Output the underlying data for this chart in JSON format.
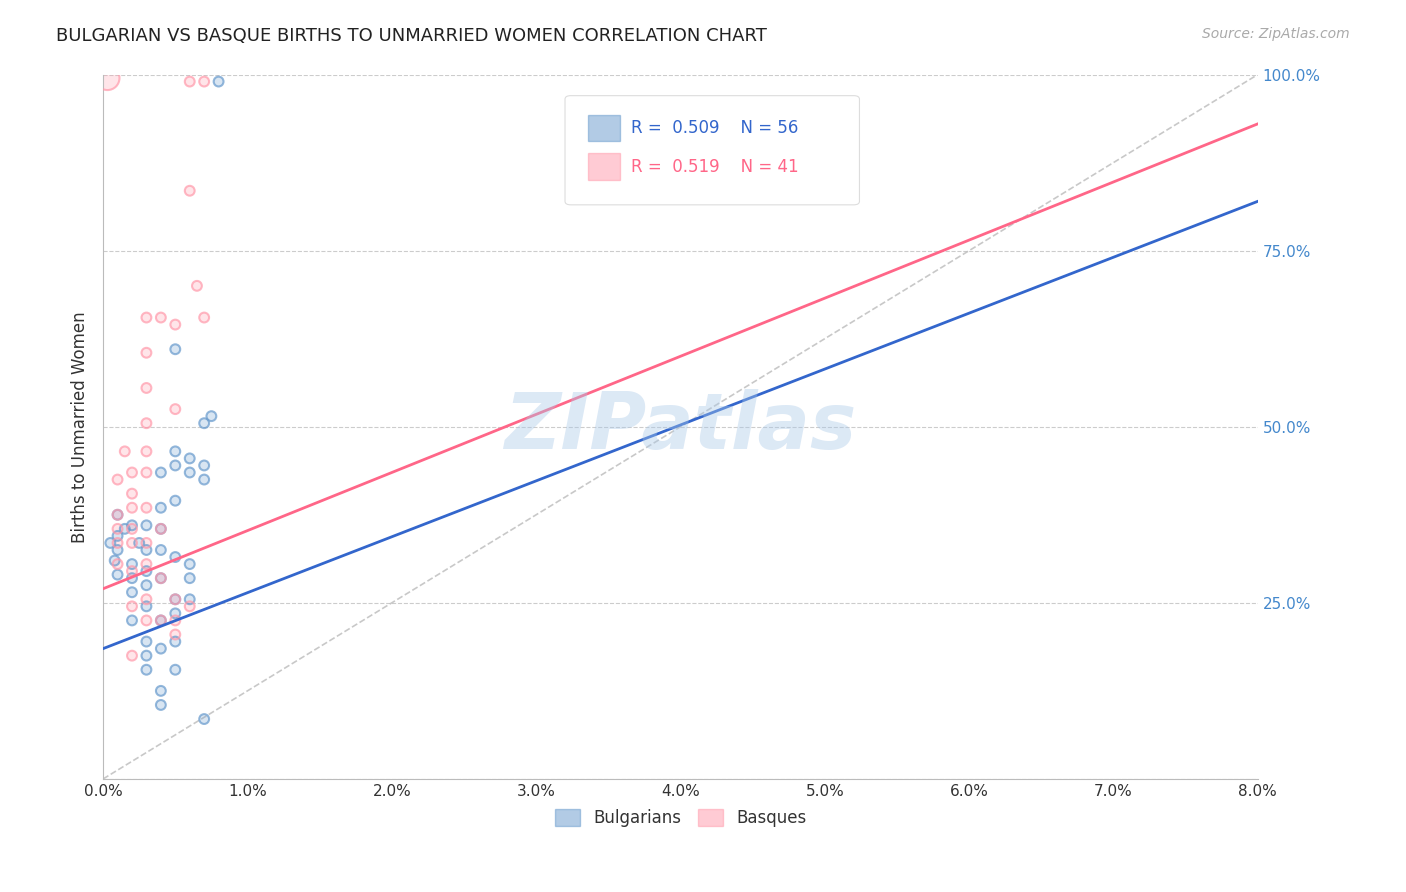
{
  "title": "BULGARIAN VS BASQUE BIRTHS TO UNMARRIED WOMEN CORRELATION CHART",
  "source": "Source: ZipAtlas.com",
  "ylabel": "Births to Unmarried Women",
  "xlim": [
    0.0,
    0.08
  ],
  "ylim": [
    0.0,
    1.0
  ],
  "xticks": [
    0.0,
    0.01,
    0.02,
    0.03,
    0.04,
    0.05,
    0.06,
    0.07,
    0.08
  ],
  "xticklabels": [
    "0.0%",
    "1.0%",
    "2.0%",
    "3.0%",
    "4.0%",
    "5.0%",
    "6.0%",
    "7.0%",
    "8.0%"
  ],
  "yticks_right": [
    0.0,
    0.25,
    0.5,
    0.75,
    1.0
  ],
  "yticklabels_right": [
    "",
    "25.0%",
    "50.0%",
    "75.0%",
    "100.0%"
  ],
  "grid_color": "#cccccc",
  "background_color": "#ffffff",
  "watermark": "ZIPatlas",
  "watermark_color": "#a8c8e8",
  "blue_color": "#6699cc",
  "pink_color": "#ff99aa",
  "blue_line_color": "#3366cc",
  "pink_line_color": "#ff6688",
  "dashed_line_color": "#bbbbbb",
  "blue_scatter": [
    [
      0.0005,
      0.335
    ],
    [
      0.0008,
      0.31
    ],
    [
      0.001,
      0.345
    ],
    [
      0.001,
      0.325
    ],
    [
      0.001,
      0.29
    ],
    [
      0.001,
      0.375
    ],
    [
      0.0015,
      0.355
    ],
    [
      0.002,
      0.36
    ],
    [
      0.002,
      0.305
    ],
    [
      0.002,
      0.285
    ],
    [
      0.002,
      0.265
    ],
    [
      0.002,
      0.225
    ],
    [
      0.0025,
      0.335
    ],
    [
      0.003,
      0.295
    ],
    [
      0.003,
      0.275
    ],
    [
      0.003,
      0.325
    ],
    [
      0.003,
      0.36
    ],
    [
      0.003,
      0.245
    ],
    [
      0.003,
      0.195
    ],
    [
      0.003,
      0.175
    ],
    [
      0.003,
      0.155
    ],
    [
      0.004,
      0.435
    ],
    [
      0.004,
      0.385
    ],
    [
      0.004,
      0.355
    ],
    [
      0.004,
      0.325
    ],
    [
      0.004,
      0.285
    ],
    [
      0.004,
      0.225
    ],
    [
      0.004,
      0.185
    ],
    [
      0.004,
      0.125
    ],
    [
      0.004,
      0.105
    ],
    [
      0.005,
      0.61
    ],
    [
      0.005,
      0.465
    ],
    [
      0.005,
      0.445
    ],
    [
      0.005,
      0.395
    ],
    [
      0.005,
      0.315
    ],
    [
      0.005,
      0.255
    ],
    [
      0.005,
      0.235
    ],
    [
      0.005,
      0.195
    ],
    [
      0.005,
      0.155
    ],
    [
      0.006,
      0.435
    ],
    [
      0.006,
      0.455
    ],
    [
      0.006,
      0.305
    ],
    [
      0.006,
      0.285
    ],
    [
      0.006,
      0.255
    ],
    [
      0.007,
      0.505
    ],
    [
      0.007,
      0.445
    ],
    [
      0.007,
      0.425
    ],
    [
      0.007,
      0.085
    ],
    [
      0.0075,
      0.515
    ],
    [
      0.008,
      0.99
    ]
  ],
  "blue_sizes": [
    50,
    50,
    50,
    50,
    50,
    50,
    50,
    50,
    50,
    50,
    50,
    50,
    50,
    50,
    50,
    50,
    50,
    50,
    50,
    50,
    50,
    50,
    50,
    50,
    50,
    50,
    50,
    50,
    50,
    50,
    50,
    50,
    50,
    50,
    50,
    50,
    50,
    50,
    50,
    50,
    50,
    50,
    50,
    50,
    50,
    50,
    50,
    50,
    50,
    50
  ],
  "pink_scatter": [
    [
      0.0003,
      0.995
    ],
    [
      0.001,
      0.425
    ],
    [
      0.001,
      0.355
    ],
    [
      0.001,
      0.375
    ],
    [
      0.001,
      0.335
    ],
    [
      0.001,
      0.305
    ],
    [
      0.0015,
      0.465
    ],
    [
      0.002,
      0.435
    ],
    [
      0.002,
      0.405
    ],
    [
      0.002,
      0.385
    ],
    [
      0.002,
      0.355
    ],
    [
      0.002,
      0.335
    ],
    [
      0.002,
      0.295
    ],
    [
      0.002,
      0.245
    ],
    [
      0.002,
      0.175
    ],
    [
      0.003,
      0.655
    ],
    [
      0.003,
      0.605
    ],
    [
      0.003,
      0.555
    ],
    [
      0.003,
      0.505
    ],
    [
      0.003,
      0.465
    ],
    [
      0.003,
      0.435
    ],
    [
      0.003,
      0.385
    ],
    [
      0.003,
      0.335
    ],
    [
      0.003,
      0.305
    ],
    [
      0.003,
      0.255
    ],
    [
      0.003,
      0.225
    ],
    [
      0.004,
      0.655
    ],
    [
      0.004,
      0.355
    ],
    [
      0.004,
      0.285
    ],
    [
      0.004,
      0.225
    ],
    [
      0.005,
      0.645
    ],
    [
      0.005,
      0.525
    ],
    [
      0.005,
      0.255
    ],
    [
      0.005,
      0.225
    ],
    [
      0.005,
      0.205
    ],
    [
      0.006,
      0.835
    ],
    [
      0.006,
      0.245
    ],
    [
      0.006,
      0.99
    ],
    [
      0.007,
      0.655
    ],
    [
      0.0065,
      0.7
    ],
    [
      0.007,
      0.99
    ]
  ],
  "pink_sizes": [
    300,
    50,
    50,
    50,
    50,
    50,
    50,
    50,
    50,
    50,
    50,
    50,
    50,
    50,
    50,
    50,
    50,
    50,
    50,
    50,
    50,
    50,
    50,
    50,
    50,
    50,
    50,
    50,
    50,
    50,
    50,
    50,
    50,
    50,
    50,
    50,
    50,
    50,
    50,
    50,
    50
  ],
  "blue_line_x": [
    0.0,
    0.08
  ],
  "blue_line_y": [
    0.185,
    0.82
  ],
  "pink_line_x": [
    0.0,
    0.08
  ],
  "pink_line_y": [
    0.27,
    0.93
  ],
  "dashed_line_x": [
    0.0,
    0.08
  ],
  "dashed_line_y": [
    0.0,
    1.0
  ]
}
